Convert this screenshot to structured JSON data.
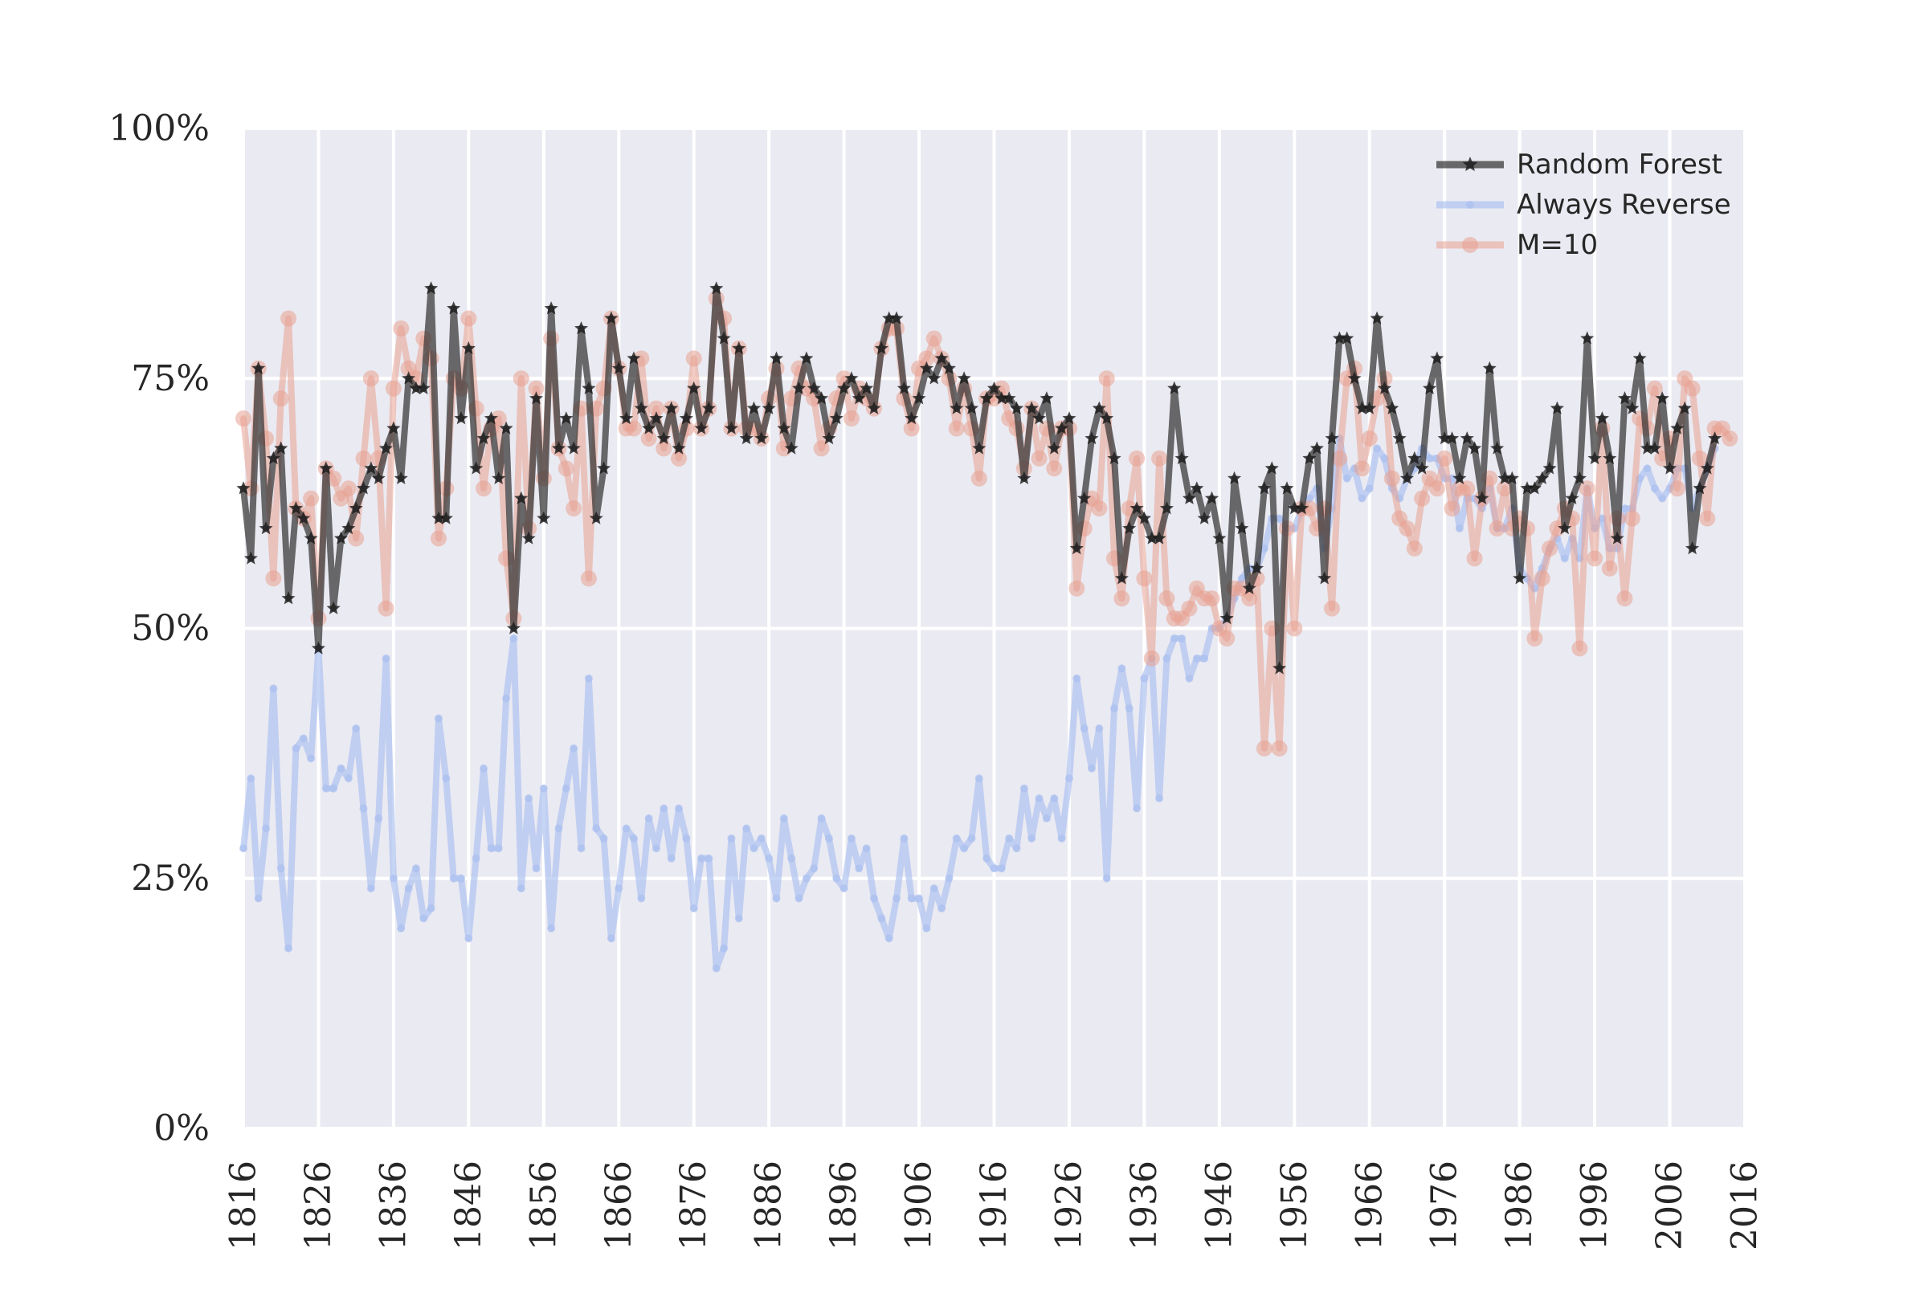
{
  "colors": {
    "plot_background": "#eaeaf2",
    "grid": "#ffffff",
    "random_forest": "#2f2f2f",
    "always_reverse": "#a9bff0",
    "m10": "#e8a090"
  },
  "chart_data": {
    "type": "line",
    "title": "",
    "xlabel": "",
    "ylabel": "",
    "xlim": [
      1816,
      2016
    ],
    "ylim": [
      0,
      100
    ],
    "grid": true,
    "legend_placement": "top-right",
    "x_ticks": [
      "1816",
      "1826",
      "1836",
      "1846",
      "1856",
      "1866",
      "1876",
      "1886",
      "1896",
      "1906",
      "1916",
      "1926",
      "1936",
      "1946",
      "1956",
      "1966",
      "1976",
      "1986",
      "1996",
      "2006",
      "2016"
    ],
    "y_ticks": [
      "0%",
      "25%",
      "50%",
      "75%",
      "100%"
    ],
    "y_tick_values": [
      0,
      25,
      50,
      75,
      100
    ],
    "x_start": 1816,
    "series": [
      {
        "name": "Random Forest",
        "marker": "star",
        "values": [
          64,
          57,
          76,
          60,
          67,
          68,
          53,
          62,
          61,
          59,
          48,
          66,
          52,
          59,
          60,
          62,
          64,
          66,
          65,
          68,
          70,
          65,
          75,
          74,
          74,
          84,
          61,
          61,
          82,
          71,
          78,
          66,
          69,
          71,
          65,
          70,
          50,
          63,
          59,
          73,
          61,
          82,
          68,
          71,
          68,
          80,
          74,
          61,
          66,
          81,
          76,
          71,
          77,
          72,
          70,
          71,
          69,
          72,
          68,
          71,
          74,
          70,
          72,
          84,
          79,
          70,
          78,
          69,
          72,
          69,
          72,
          77,
          70,
          68,
          74,
          77,
          74,
          73,
          69,
          71,
          74,
          75,
          73,
          74,
          72,
          78,
          81,
          81,
          74,
          71,
          73,
          76,
          75,
          77,
          76,
          72,
          75,
          72,
          68,
          73,
          74,
          73,
          73,
          72,
          65,
          72,
          71,
          73,
          68,
          70,
          71,
          58,
          63,
          69,
          72,
          71,
          67,
          55,
          60,
          62,
          61,
          59,
          59,
          62,
          74,
          67,
          63,
          64,
          61,
          63,
          59,
          51,
          65,
          60,
          54,
          56,
          64,
          66,
          46,
          64,
          62,
          62,
          67,
          68,
          55,
          69,
          79,
          79,
          75,
          72,
          72,
          81,
          74,
          72,
          69,
          65,
          67,
          66,
          74,
          77,
          69,
          69,
          65,
          69,
          68,
          63,
          76,
          68,
          65,
          65,
          55,
          64,
          64,
          65,
          66,
          72,
          60,
          63,
          65,
          79,
          67,
          71,
          67,
          59,
          73,
          72,
          77,
          68,
          68,
          73,
          66,
          70,
          72,
          58,
          64,
          66,
          69
        ]
      },
      {
        "name": "Always Reverse",
        "marker": "dot",
        "values": [
          28,
          35,
          23,
          30,
          44,
          26,
          18,
          38,
          39,
          37,
          48,
          34,
          34,
          36,
          35,
          40,
          32,
          24,
          31,
          47,
          25,
          20,
          24,
          26,
          21,
          22,
          41,
          35,
          25,
          25,
          19,
          27,
          36,
          28,
          28,
          43,
          49,
          24,
          33,
          26,
          34,
          20,
          30,
          34,
          38,
          28,
          45,
          30,
          29,
          19,
          24,
          30,
          29,
          23,
          31,
          28,
          32,
          27,
          32,
          29,
          22,
          27,
          27,
          16,
          18,
          29,
          21,
          30,
          28,
          29,
          27,
          23,
          31,
          27,
          23,
          25,
          26,
          31,
          29,
          25,
          24,
          29,
          26,
          28,
          23,
          21,
          19,
          23,
          29,
          23,
          23,
          20,
          24,
          22,
          25,
          29,
          28,
          29,
          35,
          27,
          26,
          26,
          29,
          28,
          34,
          29,
          33,
          31,
          33,
          29,
          35,
          45,
          40,
          36,
          40,
          25,
          42,
          46,
          42,
          32,
          45,
          47,
          33,
          47,
          49,
          49,
          45,
          47,
          47,
          50,
          50,
          51,
          53,
          55,
          56,
          56,
          58,
          61,
          61,
          60,
          60,
          62,
          63,
          64,
          58,
          62,
          69,
          65,
          66,
          63,
          64,
          68,
          67,
          64,
          63,
          65,
          66,
          68,
          67,
          67,
          65,
          65,
          60,
          63,
          63,
          62,
          64,
          60,
          60,
          62,
          56,
          55,
          54,
          56,
          58,
          59,
          57,
          59,
          57,
          64,
          60,
          61,
          58,
          58,
          62,
          62,
          65,
          66,
          64,
          63,
          64,
          66,
          66,
          62,
          64,
          66,
          68
        ]
      },
      {
        "name": "M=10",
        "marker": "circle",
        "values": [
          71,
          64,
          76,
          69,
          55,
          73,
          81,
          62,
          61,
          63,
          51,
          66,
          65,
          63,
          64,
          59,
          67,
          75,
          67,
          52,
          74,
          80,
          76,
          75,
          79,
          77,
          59,
          64,
          75,
          74,
          81,
          72,
          64,
          70,
          71,
          57,
          51,
          75,
          60,
          74,
          65,
          79,
          68,
          66,
          62,
          72,
          55,
          72,
          74,
          81,
          76,
          70,
          70,
          77,
          69,
          72,
          68,
          72,
          67,
          70,
          77,
          70,
          72,
          83,
          81,
          70,
          78,
          70,
          70,
          69,
          73,
          76,
          68,
          73,
          76,
          74,
          73,
          68,
          70,
          73,
          75,
          71,
          74,
          73,
          72,
          78,
          80,
          80,
          73,
          70,
          76,
          77,
          79,
          77,
          75,
          70,
          74,
          70,
          65,
          73,
          73,
          74,
          71,
          70,
          66,
          72,
          67,
          70,
          66,
          70,
          70,
          54,
          60,
          63,
          62,
          75,
          57,
          53,
          62,
          67,
          55,
          47,
          67,
          53,
          51,
          51,
          52,
          54,
          53,
          53,
          50,
          49,
          54,
          54,
          53,
          55,
          38,
          50,
          38,
          60,
          50,
          62,
          62,
          60,
          62,
          52,
          67,
          75,
          76,
          66,
          69,
          73,
          75,
          65,
          61,
          60,
          58,
          63,
          65,
          64,
          67,
          62,
          64,
          64,
          57,
          63,
          65,
          60,
          64,
          60,
          61,
          60,
          49,
          55,
          58,
          60,
          62,
          61,
          48,
          64,
          57,
          70,
          56,
          61,
          53,
          61,
          71,
          70,
          74,
          67,
          69,
          64,
          75,
          74,
          67,
          61,
          70,
          70,
          69
        ]
      }
    ]
  }
}
